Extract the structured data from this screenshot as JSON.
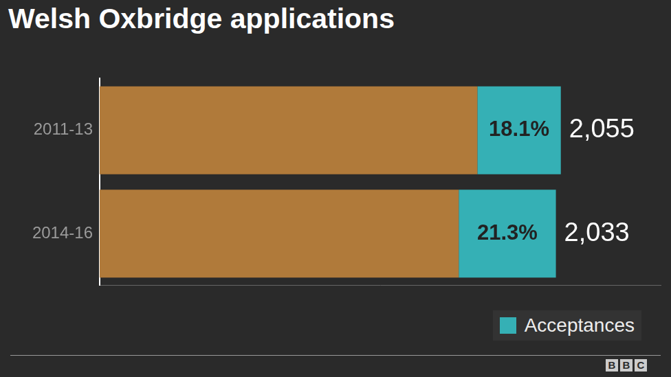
{
  "chart_data": {
    "type": "bar",
    "title": "Welsh Oxbridge applications",
    "orientation": "horizontal",
    "stacked": true,
    "categories": [
      "2011-13",
      "2014-16"
    ],
    "values": [
      2055,
      2033
    ],
    "value_labels": [
      "2,055",
      "2,033"
    ],
    "color": "#b07a3a",
    "series": [
      {
        "name": "Acceptances",
        "color": "#35b0b5",
        "values": [
          18.1,
          21.3
        ],
        "value_labels": [
          "18.1%",
          "21.3%"
        ]
      }
    ],
    "xlim": [
      0,
      2500
    ],
    "tick_labels": "y",
    "data_labels": true,
    "legend": "bottom-right",
    "grid": false,
    "source": "BBC"
  }
}
